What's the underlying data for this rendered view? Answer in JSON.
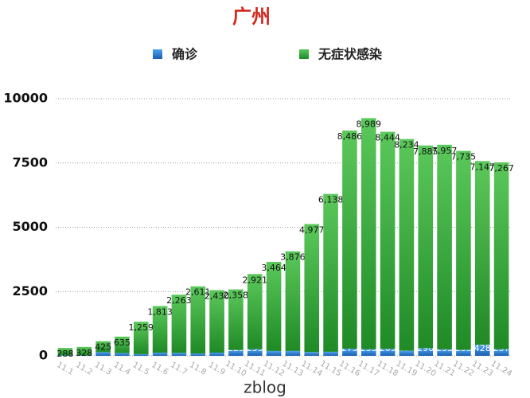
{
  "chart_data": {
    "type": "stacked-bar",
    "title": "广州",
    "categories": [
      "11.1",
      "11.2",
      "11.3",
      "11.4",
      "11.5",
      "11.6",
      "11.7",
      "11.8",
      "11.9",
      "11.10",
      "11.11",
      "11.12",
      "11.13",
      "11.14",
      "11.15",
      "11.16",
      "11.17",
      "11.18",
      "11.19",
      "11.20",
      "11.21",
      "11.22",
      "11.23",
      "11.24"
    ],
    "series": [
      {
        "name": "确诊",
        "color": "#2f7fd1",
        "values": [
          17,
          18,
          142,
          111,
          66,
          122,
          114,
          91,
          124,
          225,
          259,
          189,
          189,
          147,
          158,
          275,
          255,
          269,
          197,
          296,
          253,
          235,
          428,
          257
        ]
      },
      {
        "name": "无症状感染",
        "color": "#3aa33a",
        "values": [
          288,
          328,
          425,
          635,
          1259,
          1813,
          2263,
          2611,
          2430,
          2358,
          2921,
          3464,
          3876,
          4977,
          6138,
          8486,
          8989,
          8444,
          8234,
          7885,
          7957,
          7735,
          7147,
          7267
        ],
        "value_labels": [
          "288",
          "328",
          "425",
          "635",
          "1,259",
          "1,813",
          "2,263",
          "2,611",
          "2,430",
          "2,358",
          "2,921",
          "3,464",
          "3,876",
          "4,977",
          "6,138",
          "8,486",
          "8,989",
          "8,444",
          "8,234",
          "7,885",
          "7,957",
          "7,735",
          "7,147",
          "7,267"
        ]
      }
    ],
    "ylim": [
      0,
      10000
    ],
    "yticks": [
      0,
      2500,
      5000,
      7500,
      10000
    ],
    "grid": true,
    "watermark": "zblog"
  }
}
